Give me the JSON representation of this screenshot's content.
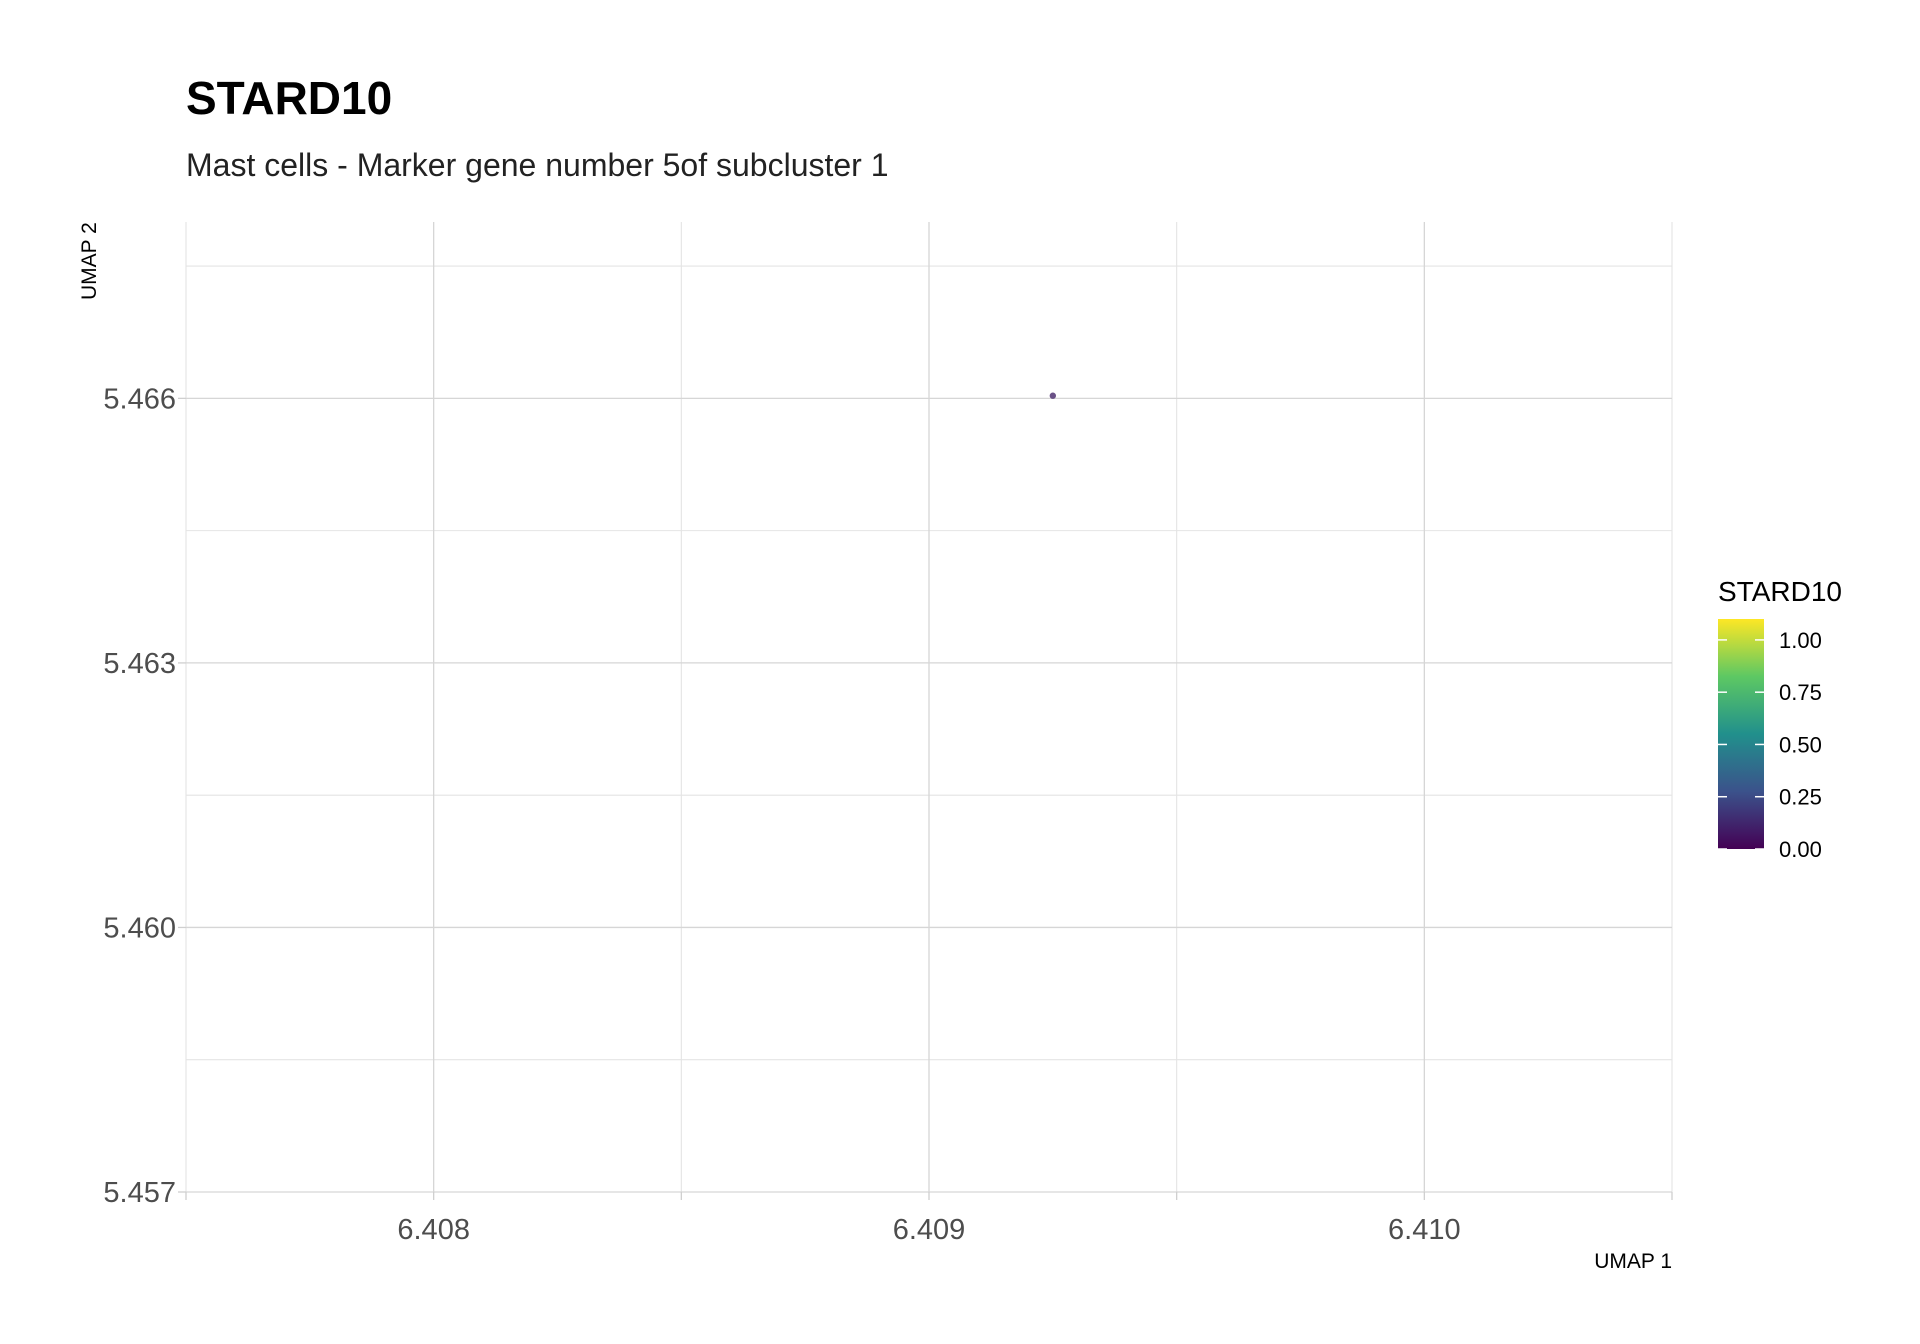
{
  "chart_data": {
    "type": "scatter",
    "title": "STARD10",
    "subtitle": "Mast cells - Marker gene number 5of subcluster 1",
    "xlabel": "UMAP 1",
    "ylabel": "UMAP 2",
    "xlim": [
      6.4075,
      6.4105
    ],
    "ylim": [
      5.457,
      5.468
    ],
    "x_ticks": [
      6.408,
      6.409,
      6.41
    ],
    "x_tick_labels": [
      "6.408",
      "6.409",
      "6.410"
    ],
    "y_ticks": [
      5.457,
      5.46,
      5.463,
      5.466
    ],
    "y_tick_labels": [
      "5.457",
      "5.460",
      "5.463",
      "5.466"
    ],
    "grid": true,
    "points": [
      {
        "x": 6.40925,
        "y": 5.46603,
        "value": 0.0
      }
    ],
    "legend": {
      "title": "STARD10",
      "position": "right",
      "type": "colorbar",
      "range": [
        0,
        1.1
      ],
      "ticks": [
        0.0,
        0.25,
        0.5,
        0.75,
        1.0
      ],
      "tick_labels": [
        "0.00",
        "0.25",
        "0.50",
        "0.75",
        "1.00"
      ],
      "colors": [
        "#440154",
        "#3b528b",
        "#21908c",
        "#5dc863",
        "#fde725"
      ]
    }
  }
}
